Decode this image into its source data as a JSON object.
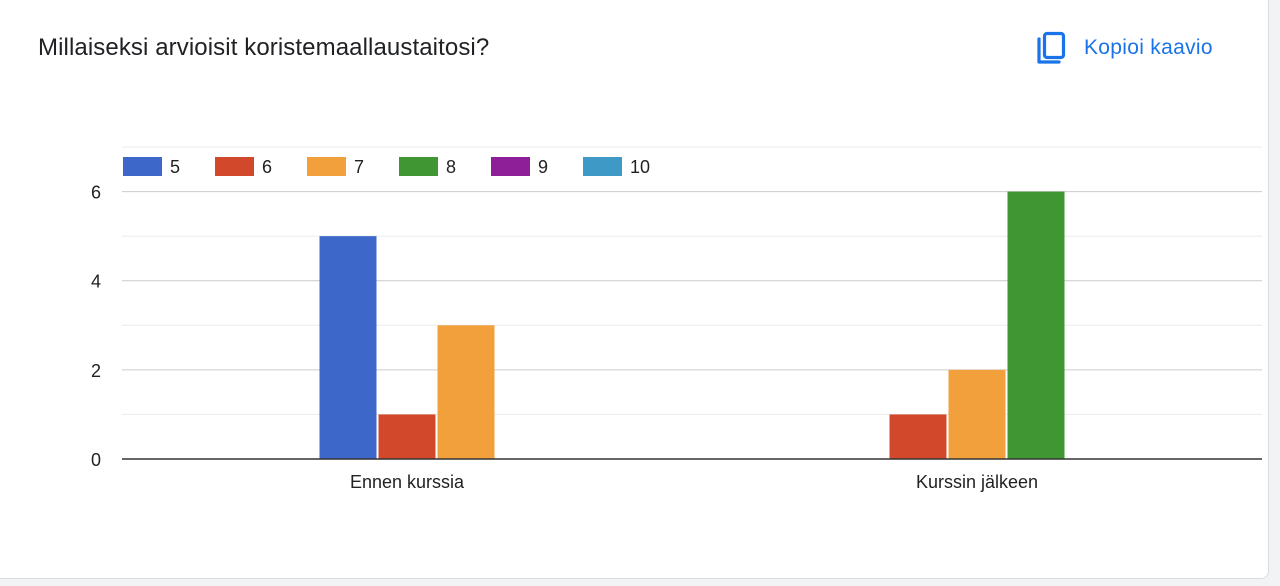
{
  "header": {
    "title": "Millaiseksi arvioisit koristemaallaustaitosi?",
    "copy_label": "Kopioi kaavio",
    "copy_icon": "copy-icon"
  },
  "colors": {
    "accent": "#1a73e8",
    "gridline": "#dadce0",
    "axis": "#333333",
    "tick_text": "#222222"
  },
  "chart_data": {
    "type": "bar",
    "title": "",
    "xlabel": "",
    "ylabel": "",
    "categories": [
      "Ennen kurssia",
      "Kurssin jälkeen"
    ],
    "ylim": [
      0,
      7
    ],
    "yticks": [
      0,
      2,
      4,
      6
    ],
    "grid": true,
    "legend_position": "top-left",
    "series": [
      {
        "name": "5",
        "color": "#3d67c8",
        "values": [
          5,
          0
        ]
      },
      {
        "name": "6",
        "color": "#d1492a",
        "values": [
          1,
          1
        ]
      },
      {
        "name": "7",
        "color": "#f2a03b",
        "values": [
          3,
          2
        ]
      },
      {
        "name": "8",
        "color": "#3f9633",
        "values": [
          0,
          6
        ]
      },
      {
        "name": "9",
        "color": "#8e1f98",
        "values": [
          0,
          0
        ]
      },
      {
        "name": "10",
        "color": "#3e99c7",
        "values": [
          0,
          0
        ]
      }
    ]
  }
}
